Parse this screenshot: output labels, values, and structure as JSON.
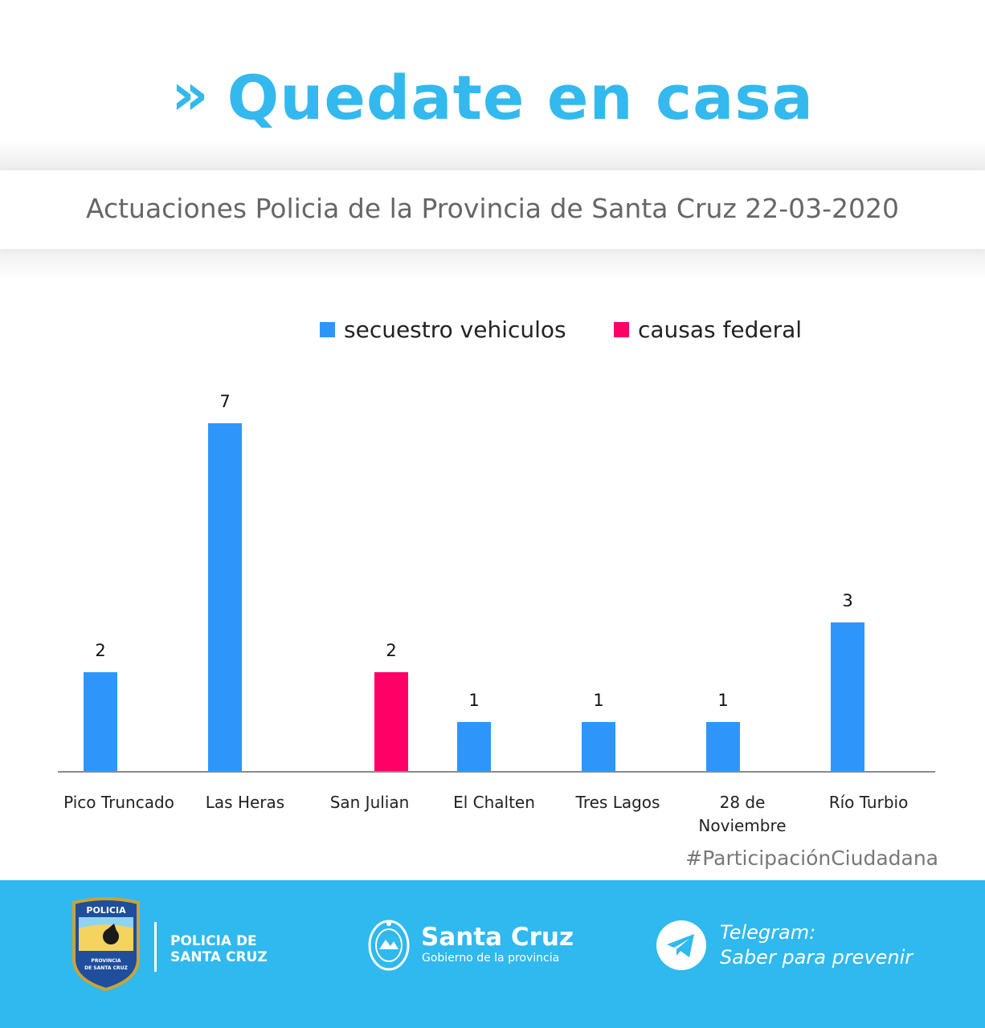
{
  "header": {
    "chevron": "»",
    "title": "Quedate en casa",
    "subtitle": "Actuaciones Policia de la Provincia de Santa Cruz 22-03-2020"
  },
  "colors": {
    "accent": "#33b9ee",
    "footer": "#2fb9ee",
    "series_blue": "#2e96fb",
    "series_pink": "#ff0066"
  },
  "chart_data": {
    "type": "bar",
    "title": "",
    "xlabel": "",
    "ylabel": "",
    "grid": false,
    "legend_position": "top",
    "legend": [
      {
        "label": "secuestro vehiculos",
        "color": "#2e96fb"
      },
      {
        "label": "causas federal",
        "color": "#ff0066"
      }
    ],
    "categories": [
      "Pico Truncado",
      "Las Heras",
      "San Julian",
      "El Chalten",
      "Tres Lagos",
      "28 de Noviembre",
      "Río Turbio"
    ],
    "category_lines": [
      [
        "Pico Truncado"
      ],
      [
        "Las Heras"
      ],
      [
        "San Julian"
      ],
      [
        "El Chalten"
      ],
      [
        "Tres Lagos"
      ],
      [
        "28 de",
        "Noviembre"
      ],
      [
        "Río Turbio"
      ]
    ],
    "series": [
      {
        "name": "secuestro vehiculos",
        "color": "#2e96fb",
        "values": [
          2,
          7,
          null,
          1,
          1,
          1,
          3
        ]
      },
      {
        "name": "causas federal",
        "color": "#ff0066",
        "values": [
          null,
          null,
          2,
          null,
          null,
          null,
          null
        ]
      }
    ],
    "ylim": [
      0,
      7
    ]
  },
  "hashtag": "#ParticipaciónCiudadana",
  "footer": {
    "badge_text": "POLICIA",
    "badge_sub": "PROVINCIA DE SANTA CRUZ",
    "police_line1": "POLICIA DE",
    "police_line2": "SANTA CRUZ",
    "gov_name": "Santa Cruz",
    "gov_sub": "Gobierno de la provincia",
    "telegram_line1": "Telegram:",
    "telegram_line2": "Saber para prevenir",
    "telegram_icon": "paper-plane-icon"
  }
}
